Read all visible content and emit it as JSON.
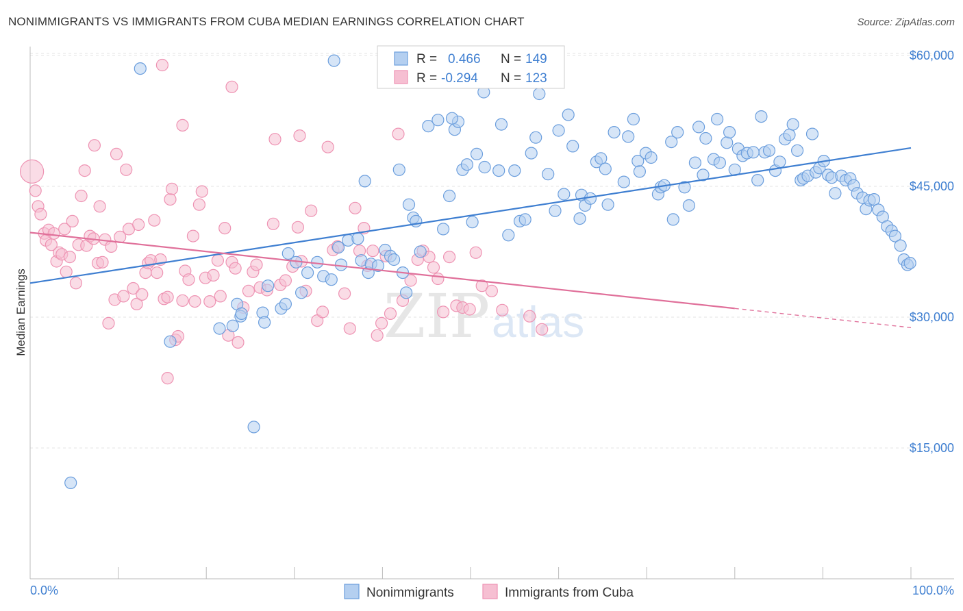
{
  "title": "NONIMMIGRANTS VS IMMIGRANTS FROM CUBA MEDIAN EARNINGS CORRELATION CHART",
  "source": "Source: ZipAtlas.com",
  "colors": {
    "blue": "#3f7fd1",
    "blue_fill": "#b4cff0",
    "blue_stroke": "#6b9edd",
    "pink": "#e0709a",
    "pink_fill": "#f6bfd2",
    "pink_stroke": "#ee93b3",
    "grid": "#e3e3e3"
  },
  "legend": {
    "r_label": "R =",
    "n_label": "N =",
    "rows": [
      {
        "r": "0.466",
        "n": "149"
      },
      {
        "r": "-0.294",
        "n": "123"
      }
    ]
  },
  "watermark": {
    "zip": "ZIP",
    "atlas": "atlas"
  },
  "chart_data": {
    "type": "scatter",
    "title": "NONIMMIGRANTS VS IMMIGRANTS FROM CUBA MEDIAN EARNINGS CORRELATION CHART",
    "xlabel": "",
    "ylabel": "Median Earnings",
    "xlim": [
      0,
      100
    ],
    "ylim": [
      0,
      62000
    ],
    "x_tick_labels": [
      "0.0%",
      "100.0%"
    ],
    "y_ticks": [
      15000,
      30000,
      45000,
      60000
    ],
    "y_tick_labels": [
      "$15,000",
      "$30,000",
      "$45,000",
      "$60,000"
    ],
    "grid": "horizontal dashed",
    "legend_position": "top-center",
    "series": [
      {
        "name": "Nonimmigrants",
        "r": 0.466,
        "n": 149,
        "trend": {
          "x": [
            0,
            100
          ],
          "y": [
            33900,
            49400
          ]
        },
        "points": [
          [
            4.6,
            11000
          ],
          [
            12.5,
            58500
          ],
          [
            15.9,
            27200
          ],
          [
            21.5,
            28700
          ],
          [
            23.0,
            29000
          ],
          [
            23.5,
            31500
          ],
          [
            23.9,
            30100
          ],
          [
            24.0,
            30400
          ],
          [
            26.4,
            30500
          ],
          [
            26.6,
            29400
          ],
          [
            27.0,
            33600
          ],
          [
            28.5,
            31000
          ],
          [
            29.0,
            31500
          ],
          [
            29.3,
            37300
          ],
          [
            30.2,
            36300
          ],
          [
            30.8,
            32800
          ],
          [
            31.5,
            35100
          ],
          [
            32.6,
            36300
          ],
          [
            33.3,
            34700
          ],
          [
            34.2,
            34300
          ],
          [
            35.0,
            38000
          ],
          [
            35.3,
            36000
          ],
          [
            36.1,
            38800
          ],
          [
            37.2,
            39000
          ],
          [
            37.6,
            36500
          ],
          [
            38.4,
            35100
          ],
          [
            38.7,
            36100
          ],
          [
            39.5,
            35900
          ],
          [
            40.3,
            37700
          ],
          [
            40.9,
            37000
          ],
          [
            41.3,
            36600
          ],
          [
            42.3,
            35100
          ],
          [
            42.7,
            32800
          ],
          [
            43.0,
            42900
          ],
          [
            43.5,
            41400
          ],
          [
            43.8,
            41000
          ],
          [
            45.2,
            51900
          ],
          [
            46.3,
            52600
          ],
          [
            46.9,
            40100
          ],
          [
            47.6,
            43900
          ],
          [
            48.2,
            51500
          ],
          [
            48.6,
            52400
          ],
          [
            49.1,
            46900
          ],
          [
            49.6,
            47500
          ],
          [
            50.2,
            40900
          ],
          [
            50.7,
            48700
          ],
          [
            51.6,
            47200
          ],
          [
            53.2,
            46800
          ],
          [
            53.5,
            52100
          ],
          [
            54.3,
            39400
          ],
          [
            55.0,
            46800
          ],
          [
            55.6,
            41000
          ],
          [
            56.2,
            41200
          ],
          [
            56.9,
            48800
          ],
          [
            57.4,
            50600
          ],
          [
            57.8,
            55600
          ],
          [
            58.8,
            46400
          ],
          [
            59.6,
            42200
          ],
          [
            60.0,
            51400
          ],
          [
            60.6,
            44100
          ],
          [
            61.1,
            53200
          ],
          [
            61.6,
            49600
          ],
          [
            62.4,
            41300
          ],
          [
            62.6,
            44000
          ],
          [
            63.0,
            42800
          ],
          [
            63.6,
            43600
          ],
          [
            64.3,
            47800
          ],
          [
            64.8,
            48200
          ],
          [
            65.3,
            47000
          ],
          [
            65.6,
            42900
          ],
          [
            66.3,
            51200
          ],
          [
            67.4,
            45500
          ],
          [
            67.9,
            50700
          ],
          [
            68.5,
            52700
          ],
          [
            69.0,
            47900
          ],
          [
            69.2,
            46700
          ],
          [
            69.9,
            48800
          ],
          [
            70.5,
            48300
          ],
          [
            71.3,
            44100
          ],
          [
            71.6,
            44900
          ],
          [
            72.0,
            45100
          ],
          [
            72.8,
            50100
          ],
          [
            73.0,
            41200
          ],
          [
            73.5,
            51200
          ],
          [
            74.3,
            44900
          ],
          [
            74.8,
            42800
          ],
          [
            75.5,
            47700
          ],
          [
            75.9,
            51800
          ],
          [
            76.4,
            46300
          ],
          [
            76.7,
            50500
          ],
          [
            77.6,
            48100
          ],
          [
            78.0,
            52700
          ],
          [
            78.3,
            47700
          ],
          [
            79.1,
            50000
          ],
          [
            79.4,
            51200
          ],
          [
            80.0,
            46900
          ],
          [
            80.4,
            49300
          ],
          [
            80.9,
            48500
          ],
          [
            81.4,
            48800
          ],
          [
            82.1,
            48900
          ],
          [
            82.6,
            45700
          ],
          [
            83.0,
            53000
          ],
          [
            83.4,
            48900
          ],
          [
            83.9,
            49100
          ],
          [
            84.6,
            46800
          ],
          [
            85.1,
            47800
          ],
          [
            85.7,
            50400
          ],
          [
            86.2,
            50900
          ],
          [
            86.6,
            52100
          ],
          [
            87.1,
            49100
          ],
          [
            87.5,
            45700
          ],
          [
            87.8,
            45900
          ],
          [
            88.3,
            46200
          ],
          [
            88.8,
            51000
          ],
          [
            89.2,
            46600
          ],
          [
            89.6,
            47100
          ],
          [
            90.1,
            47900
          ],
          [
            90.6,
            46300
          ],
          [
            91.0,
            46000
          ],
          [
            91.4,
            44200
          ],
          [
            92.1,
            46200
          ],
          [
            92.6,
            45700
          ],
          [
            93.1,
            45900
          ],
          [
            93.5,
            45100
          ],
          [
            93.9,
            44200
          ],
          [
            94.5,
            43700
          ],
          [
            94.9,
            42400
          ],
          [
            95.3,
            43400
          ],
          [
            95.8,
            43500
          ],
          [
            96.3,
            42300
          ],
          [
            96.8,
            41500
          ],
          [
            97.3,
            40400
          ],
          [
            97.8,
            39900
          ],
          [
            98.2,
            39300
          ],
          [
            98.8,
            38200
          ],
          [
            99.2,
            36600
          ],
          [
            99.6,
            36000
          ],
          [
            99.9,
            36200
          ],
          [
            54.5,
            59000
          ],
          [
            34.5,
            59400
          ],
          [
            25.4,
            17400
          ],
          [
            38.0,
            45600
          ],
          [
            47.9,
            52800
          ],
          [
            51.5,
            55800
          ],
          [
            41.9,
            46900
          ],
          [
            44.3,
            37500
          ]
        ]
      },
      {
        "name": "Immigrants from Cuba",
        "r": -0.294,
        "n": 123,
        "trend": {
          "x": [
            0,
            80
          ],
          "y": [
            39700,
            31000
          ]
        },
        "trend_extension": {
          "x": [
            80,
            100
          ],
          "y": [
            31000,
            28800
          ]
        },
        "points": [
          [
            0.2,
            46700
          ],
          [
            0.6,
            44500
          ],
          [
            0.9,
            42700
          ],
          [
            1.2,
            41800
          ],
          [
            1.6,
            39600
          ],
          [
            1.8,
            38800
          ],
          [
            2.1,
            40000
          ],
          [
            2.4,
            38300
          ],
          [
            2.7,
            39600
          ],
          [
            3.0,
            36400
          ],
          [
            3.3,
            37400
          ],
          [
            3.6,
            37200
          ],
          [
            3.9,
            40100
          ],
          [
            4.1,
            35200
          ],
          [
            4.5,
            36900
          ],
          [
            4.8,
            41000
          ],
          [
            5.2,
            33900
          ],
          [
            5.5,
            38300
          ],
          [
            5.8,
            43900
          ],
          [
            6.2,
            46800
          ],
          [
            6.4,
            38200
          ],
          [
            6.8,
            39300
          ],
          [
            7.2,
            39000
          ],
          [
            7.3,
            49700
          ],
          [
            7.7,
            36200
          ],
          [
            7.9,
            42700
          ],
          [
            8.2,
            36300
          ],
          [
            8.5,
            38900
          ],
          [
            8.9,
            29300
          ],
          [
            9.2,
            38100
          ],
          [
            9.6,
            32000
          ],
          [
            9.8,
            48700
          ],
          [
            10.2,
            39200
          ],
          [
            10.6,
            32400
          ],
          [
            10.9,
            46900
          ],
          [
            11.2,
            40100
          ],
          [
            11.7,
            33300
          ],
          [
            12.1,
            31500
          ],
          [
            12.3,
            40600
          ],
          [
            12.7,
            32600
          ],
          [
            13.1,
            35100
          ],
          [
            13.4,
            36200
          ],
          [
            13.7,
            36500
          ],
          [
            14.1,
            41100
          ],
          [
            14.4,
            35100
          ],
          [
            14.8,
            36600
          ],
          [
            15.2,
            32100
          ],
          [
            15.6,
            32300
          ],
          [
            15.9,
            43500
          ],
          [
            16.1,
            44700
          ],
          [
            16.5,
            27400
          ],
          [
            16.8,
            27800
          ],
          [
            17.3,
            31900
          ],
          [
            17.6,
            35300
          ],
          [
            18.0,
            34300
          ],
          [
            18.5,
            39300
          ],
          [
            18.7,
            31800
          ],
          [
            19.2,
            42900
          ],
          [
            19.5,
            44400
          ],
          [
            19.9,
            34500
          ],
          [
            20.4,
            31800
          ],
          [
            20.8,
            34800
          ],
          [
            21.3,
            36500
          ],
          [
            21.6,
            32400
          ],
          [
            22.1,
            40200
          ],
          [
            22.5,
            27900
          ],
          [
            22.9,
            36300
          ],
          [
            23.3,
            35600
          ],
          [
            23.6,
            27100
          ],
          [
            24.2,
            31100
          ],
          [
            24.8,
            33000
          ],
          [
            25.3,
            35200
          ],
          [
            25.7,
            36000
          ],
          [
            26.1,
            33400
          ],
          [
            26.9,
            33100
          ],
          [
            27.6,
            40700
          ],
          [
            28.4,
            33700
          ],
          [
            29.0,
            34200
          ],
          [
            29.8,
            35800
          ],
          [
            30.4,
            40300
          ],
          [
            30.8,
            36400
          ],
          [
            31.3,
            33000
          ],
          [
            31.9,
            42200
          ],
          [
            32.6,
            29600
          ],
          [
            33.2,
            30600
          ],
          [
            33.8,
            49500
          ],
          [
            34.4,
            37700
          ],
          [
            34.9,
            38100
          ],
          [
            35.7,
            32700
          ],
          [
            36.3,
            28700
          ],
          [
            36.9,
            42500
          ],
          [
            37.4,
            37600
          ],
          [
            37.9,
            40200
          ],
          [
            38.3,
            35900
          ],
          [
            38.9,
            37600
          ],
          [
            39.4,
            27900
          ],
          [
            39.9,
            29300
          ],
          [
            40.4,
            37000
          ],
          [
            40.9,
            30400
          ],
          [
            41.8,
            51000
          ],
          [
            42.3,
            31900
          ],
          [
            43.2,
            34200
          ],
          [
            44.0,
            36600
          ],
          [
            44.6,
            37600
          ],
          [
            45.3,
            36900
          ],
          [
            45.8,
            35700
          ],
          [
            46.3,
            34400
          ],
          [
            46.9,
            30600
          ],
          [
            47.6,
            36900
          ],
          [
            48.4,
            31300
          ],
          [
            49.1,
            31100
          ],
          [
            49.9,
            30900
          ],
          [
            50.6,
            37400
          ],
          [
            51.3,
            33600
          ],
          [
            52.4,
            33000
          ],
          [
            53.6,
            30800
          ],
          [
            56.7,
            30100
          ],
          [
            58.1,
            28600
          ],
          [
            15.6,
            23000
          ],
          [
            15.0,
            58900
          ],
          [
            17.3,
            52000
          ],
          [
            22.9,
            56400
          ],
          [
            27.8,
            50400
          ],
          [
            30.6,
            50800
          ]
        ]
      }
    ]
  }
}
